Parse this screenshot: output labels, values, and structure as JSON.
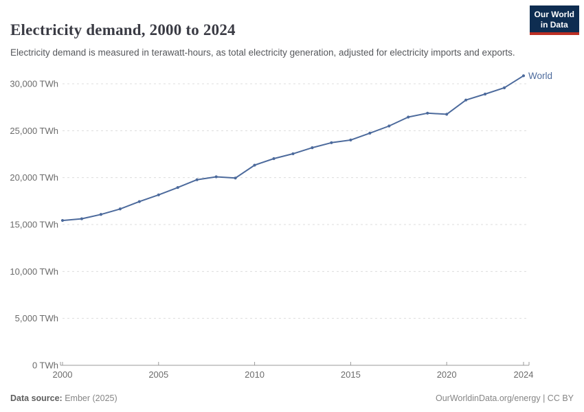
{
  "header": {
    "title": "Electricity demand, 2000 to 2024",
    "subtitle": "Electricity demand is measured in terawatt-hours, as total electricity generation, adjusted for electricity imports and exports."
  },
  "logo": {
    "line1": "Our World",
    "line2": "in Data",
    "bg_color": "#0e2d51",
    "accent_color": "#bc2f24"
  },
  "footer": {
    "source_label": "Data source:",
    "source_value": " Ember (2025)",
    "credit": "OurWorldinData.org/energy | CC BY"
  },
  "chart_data": {
    "type": "line",
    "title": "Electricity demand, 2000 to 2024",
    "xlabel": "",
    "ylabel": "TWh",
    "x": [
      2000,
      2001,
      2002,
      2003,
      2004,
      2005,
      2006,
      2007,
      2008,
      2009,
      2010,
      2011,
      2012,
      2013,
      2014,
      2015,
      2016,
      2017,
      2018,
      2019,
      2020,
      2021,
      2022,
      2023,
      2024
    ],
    "series": [
      {
        "name": "World",
        "color": "#4C6A9C",
        "values": [
          15436,
          15617,
          16078,
          16665,
          17447,
          18162,
          18947,
          19777,
          20084,
          19955,
          21327,
          22028,
          22544,
          23188,
          23724,
          24010,
          24740,
          25500,
          26451,
          26869,
          26753,
          28269,
          28904,
          29574,
          30856
        ]
      }
    ],
    "xlim": [
      2000,
      2024
    ],
    "ylim": [
      0,
      31500
    ],
    "xticks": {
      "values": [
        2000,
        2005,
        2010,
        2015,
        2020,
        2024
      ],
      "labels": [
        "2000",
        "2005",
        "2010",
        "2015",
        "2020",
        "2024"
      ]
    },
    "yticks": {
      "values": [
        0,
        5000,
        10000,
        15000,
        20000,
        25000,
        30000
      ],
      "labels": [
        "0 TWh",
        "5,000 TWh",
        "10,000 TWh",
        "15,000 TWh",
        "20,000 TWh",
        "25,000 TWh",
        "30,000 TWh"
      ]
    },
    "grid": "horizontal-dashed",
    "legend_position": "end-of-line-label",
    "markers": true
  }
}
